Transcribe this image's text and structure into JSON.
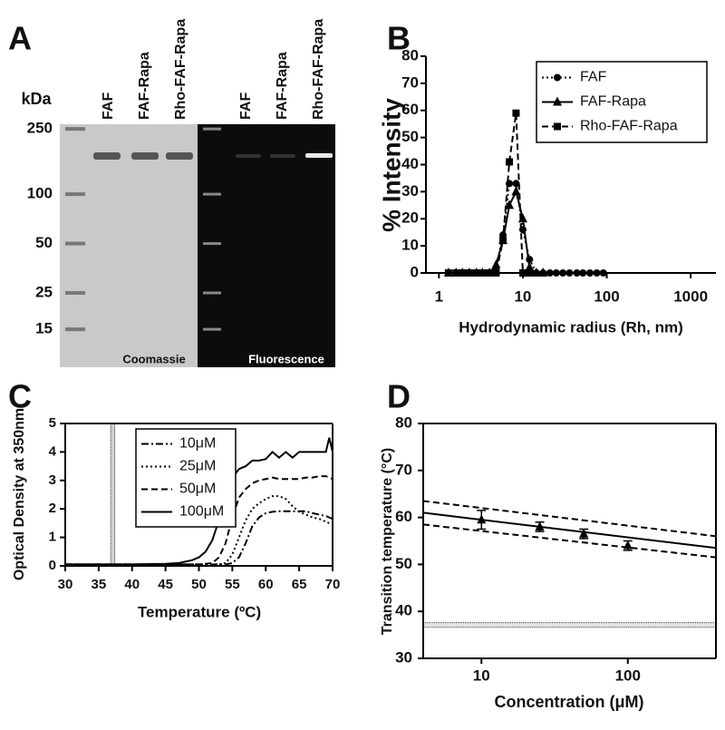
{
  "chart_data": [
    {
      "type": "gel",
      "panel": "A",
      "ylabel": "kDa",
      "ylog": true,
      "ylim": [
        8.8,
        267
      ],
      "yticks": [
        250,
        100,
        50,
        25,
        15
      ],
      "lanes": [
        "FAF",
        "FAF-Rapa",
        "Rho-FAF-Rapa",
        "FAF",
        "FAF-Rapa",
        "Rho-FAF-Rapa"
      ],
      "stains": [
        "Coomassie",
        "Fluorescence"
      ]
    },
    {
      "type": "line",
      "panel": "B",
      "ylabel": "% Intensity",
      "xlabel": "Hydrodynamic radius (Rh, nm)",
      "xlog": true,
      "xlim": [
        0.7,
        2000
      ],
      "xticks": [
        1,
        10,
        100,
        1000
      ],
      "ylim": [
        0,
        80
      ],
      "yticks": [
        0,
        10,
        20,
        30,
        40,
        50,
        60,
        70,
        80
      ],
      "frame": false,
      "legend": "upper right",
      "series": [
        {
          "name": "FAF",
          "color": "#000000",
          "linestyle": "dotted",
          "marker": "circle",
          "x": [
            1.3,
            1.6,
            1.9,
            2.3,
            2.8,
            3.3,
            4.0,
            4.8,
            5.8,
            6.9,
            8.3,
            10,
            12,
            14.5,
            17.4,
            21,
            25,
            30,
            36,
            44,
            52,
            63,
            76,
            91
          ],
          "values": [
            0,
            0,
            0,
            0,
            0,
            0,
            0,
            2,
            14,
            33,
            33,
            16,
            5,
            0,
            0,
            0,
            0,
            0,
            0,
            0,
            0,
            0,
            0,
            0
          ]
        },
        {
          "name": "FAF-Rapa",
          "color": "#000000",
          "linestyle": "solid",
          "marker": "triangle",
          "x": [
            1.3,
            1.6,
            1.9,
            2.3,
            2.8,
            3.3,
            4.0,
            4.8,
            5.8,
            6.9,
            8.3,
            10,
            12,
            14.5,
            17.4
          ],
          "values": [
            0,
            0,
            0,
            0,
            0,
            0,
            0,
            3,
            12,
            25,
            30,
            20,
            2,
            0,
            0
          ]
        },
        {
          "name": "Rho-FAF-Rapa",
          "color": "#000000",
          "linestyle": "dashed",
          "marker": "square",
          "x": [
            1.3,
            1.6,
            1.9,
            2.3,
            2.8,
            3.3,
            4.0,
            4.8,
            5.8,
            6.9,
            8.3,
            10,
            12
          ],
          "values": [
            0,
            0,
            0,
            0,
            0,
            0,
            0,
            0,
            12,
            41,
            59,
            0,
            0
          ]
        }
      ]
    },
    {
      "type": "line",
      "panel": "C",
      "ylabel": "Optical Density at 350nm",
      "xlabel": "Temperature (ºC)",
      "xlog": false,
      "xlim": [
        30,
        70
      ],
      "xticks": [
        30,
        35,
        40,
        45,
        50,
        55,
        60,
        65,
        70
      ],
      "ylim": [
        0,
        5
      ],
      "yticks": [
        0,
        1,
        2,
        3,
        4,
        5
      ],
      "frame": true,
      "legend": "upper center",
      "vband": [
        36.8,
        37.4
      ],
      "series": [
        {
          "name": "10μM",
          "color": "#000000",
          "linestyle": "dashdot",
          "x": [
            30,
            35,
            40,
            45,
            47,
            49,
            50,
            51,
            52,
            53,
            54,
            55,
            56,
            57,
            58,
            59,
            60,
            61,
            62,
            63,
            64,
            65,
            66,
            67,
            68,
            69,
            69.5,
            70
          ],
          "values": [
            0.05,
            0.05,
            0.05,
            0.05,
            0.05,
            0.05,
            0.05,
            0.05,
            0.05,
            0.05,
            0.05,
            0.1,
            0.3,
            0.8,
            1.4,
            1.7,
            1.85,
            1.9,
            1.92,
            1.92,
            1.92,
            1.92,
            1.92,
            1.85,
            1.8,
            1.75,
            1.7,
            1.65
          ]
        },
        {
          "name": "25μM",
          "color": "#000000",
          "linestyle": "dotted",
          "x": [
            30,
            35,
            40,
            45,
            47,
            49,
            50,
            51,
            52,
            53,
            54,
            55,
            56,
            57,
            58,
            59,
            60,
            61,
            62,
            63,
            64,
            65,
            66,
            67,
            68,
            69,
            69.5,
            70
          ],
          "values": [
            0.05,
            0.05,
            0.05,
            0.05,
            0.05,
            0.05,
            0.05,
            0.05,
            0.05,
            0.05,
            0.1,
            0.4,
            1.0,
            1.6,
            2.0,
            2.2,
            2.35,
            2.45,
            2.45,
            2.35,
            2.1,
            1.9,
            1.8,
            1.7,
            1.65,
            1.55,
            1.5,
            1.5
          ]
        },
        {
          "name": "50μM",
          "color": "#000000",
          "linestyle": "dashed",
          "x": [
            30,
            35,
            40,
            45,
            47,
            49,
            50,
            51,
            52,
            53,
            54,
            55,
            56,
            57,
            58,
            59,
            60,
            61,
            62,
            63,
            64,
            65,
            66,
            67,
            68,
            69,
            69.5,
            70
          ],
          "values": [
            0.05,
            0.05,
            0.05,
            0.05,
            0.05,
            0.05,
            0.05,
            0.07,
            0.1,
            0.3,
            0.8,
            1.7,
            2.4,
            2.7,
            2.9,
            3.0,
            3.05,
            3.1,
            3.05,
            3.05,
            3.05,
            3.05,
            3.1,
            3.1,
            3.15,
            3.15,
            3.1,
            3.05
          ]
        },
        {
          "name": "100μM",
          "color": "#000000",
          "linestyle": "solid",
          "x": [
            30,
            35,
            40,
            45,
            47,
            49,
            50,
            51,
            52,
            53,
            54,
            55,
            56,
            57,
            58,
            59,
            60,
            61,
            62,
            63,
            64,
            65,
            66,
            67,
            68,
            69,
            69.5,
            70
          ],
          "values": [
            0.05,
            0.05,
            0.05,
            0.07,
            0.1,
            0.2,
            0.3,
            0.5,
            0.9,
            1.6,
            2.5,
            3.1,
            3.4,
            3.5,
            3.7,
            3.7,
            3.75,
            4.0,
            3.8,
            4.0,
            3.8,
            4.0,
            4.0,
            4.0,
            4.0,
            4.0,
            4.5,
            4.0
          ]
        }
      ]
    },
    {
      "type": "line",
      "panel": "D",
      "ylabel": "Transition temperature (°C)",
      "xlabel": "Concentration (μM)",
      "xlog": true,
      "xlim": [
        4,
        400
      ],
      "xticks": [
        10,
        100
      ],
      "ylim": [
        30,
        80
      ],
      "yticks": [
        30,
        40,
        50,
        60,
        70,
        80
      ],
      "frame": true,
      "hband": [
        36.6,
        37.6
      ],
      "series": [
        {
          "color": "#000000",
          "linestyle": "none",
          "marker": "triangle",
          "x": [
            10,
            25,
            50,
            100
          ],
          "values": [
            59.5,
            58,
            56.5,
            54
          ],
          "errors": [
            2,
            1,
            1,
            1
          ]
        },
        {
          "color": "#000000",
          "linestyle": "solid",
          "x": [
            4,
            400
          ],
          "values": [
            61,
            53.5
          ]
        },
        {
          "color": "#000000",
          "linestyle": "dashed",
          "x": [
            4,
            400
          ],
          "values": [
            63.5,
            56
          ]
        },
        {
          "color": "#000000",
          "linestyle": "dashed",
          "x": [
            4,
            400
          ],
          "values": [
            58.5,
            51.5
          ]
        }
      ]
    }
  ]
}
